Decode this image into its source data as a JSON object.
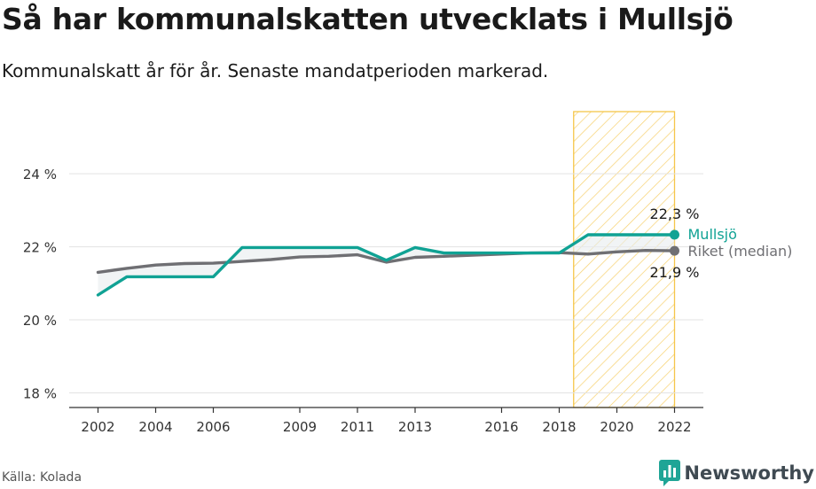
{
  "title": "Så har kommunalskatten utvecklats i Mullsjö",
  "subtitle": "Kommunalskatt år för år. Senaste mandatperioden markerad.",
  "source": "Källa: Kolada",
  "brand": {
    "name": "Newsworthy",
    "icon": "newsworthy-logo-icon"
  },
  "chart_data": {
    "type": "line",
    "ylim": [
      17.6,
      25.7
    ],
    "xlim": [
      2001.0,
      2023.0
    ],
    "y_ticks": [
      18,
      20,
      22,
      24
    ],
    "y_tick_labels": [
      "18 %",
      "20 %",
      "22 %",
      "24 %"
    ],
    "x_ticks": [
      2002,
      2004,
      2006,
      2009,
      2011,
      2013,
      2016,
      2018,
      2020,
      2022
    ],
    "x_tick_labels": [
      "2002",
      "2004",
      "2006",
      "2009",
      "2011",
      "2013",
      "2016",
      "2018",
      "2020",
      "2022"
    ],
    "grid": "horizontal",
    "highlight": {
      "x_start": 2018.5,
      "x_end": 2022.0,
      "style": "hatched",
      "color": "#f5c64a"
    },
    "x": [
      2002,
      2003,
      2004,
      2005,
      2006,
      2007,
      2008,
      2009,
      2010,
      2011,
      2012,
      2013,
      2014,
      2015,
      2016,
      2017,
      2018,
      2019,
      2020,
      2021,
      2022
    ],
    "series": [
      {
        "name": "Mullsjö",
        "color": "#10a294",
        "values": [
          20.68,
          21.18,
          21.18,
          21.18,
          21.18,
          21.98,
          21.98,
          21.98,
          21.98,
          21.98,
          21.63,
          21.98,
          21.83,
          21.83,
          21.83,
          21.83,
          21.83,
          22.33,
          22.33,
          22.33,
          22.33
        ],
        "end_label": "22,3 %"
      },
      {
        "name": "Riket (median)",
        "color": "#6f6f73",
        "values": [
          21.3,
          21.41,
          21.5,
          21.54,
          21.55,
          21.6,
          21.65,
          21.72,
          21.74,
          21.78,
          21.58,
          21.71,
          21.74,
          21.77,
          21.8,
          21.83,
          21.84,
          21.8,
          21.86,
          21.9,
          21.89
        ],
        "end_label": "21,9 %"
      }
    ]
  }
}
